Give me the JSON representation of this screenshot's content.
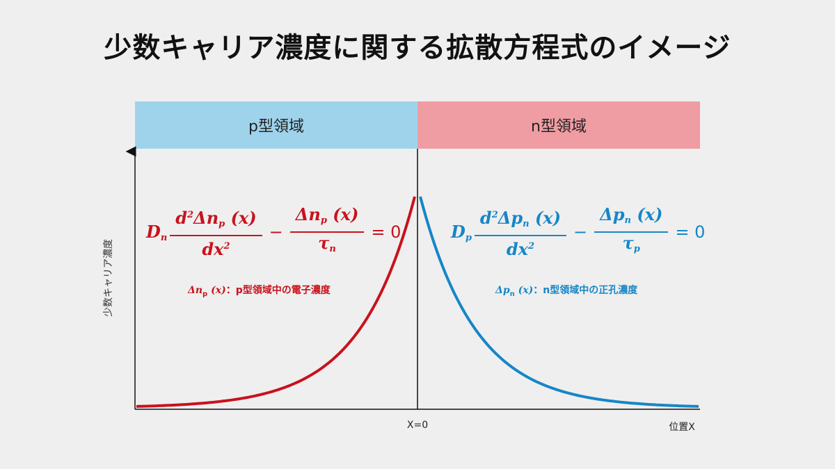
{
  "title": "少数キャリア濃度に関する拡散方程式のイメージ",
  "regions": {
    "p_label": "p型領域",
    "n_label": "n型領域"
  },
  "axes": {
    "ylabel": "少数キャリア濃度",
    "x_zero_label": "X=0",
    "xlabel": "位置X"
  },
  "equations": {
    "electron": {
      "D": "D",
      "D_sub": "n",
      "num1": "d",
      "num1_sup": "2",
      "num1_rest": "Δn",
      "num1_sub": "p",
      "num1_arg": "(x)",
      "den1": "dx",
      "den1_sup": "2",
      "num2": "Δn",
      "num2_sub": "p",
      "num2_arg": "(x)",
      "den2": "τ",
      "den2_sub": "n",
      "minus": "−",
      "equals": "= 0"
    },
    "hole": {
      "D": "D",
      "D_sub": "p",
      "num1": "d",
      "num1_sup": "2",
      "num1_rest": "Δp",
      "num1_sub": "n",
      "num1_arg": "(x)",
      "den1": "dx",
      "den1_sup": "2",
      "num2": "Δp",
      "num2_sub": "n",
      "num2_arg": "(x)",
      "den2": "τ",
      "den2_sub": "p",
      "minus": "−",
      "equals": "= 0"
    }
  },
  "notes": {
    "electron_sym": "Δn",
    "electron_sub": "p",
    "electron_arg": "(x)",
    "electron_text": "：p型領域中の電子濃度",
    "hole_sym": "Δp",
    "hole_sub": "n",
    "hole_arg": "(x)",
    "hole_text": "：n型領域中の正孔濃度"
  },
  "colors": {
    "electron": "#c8121d",
    "hole": "#1686c7",
    "p_region": "#9fd3ec",
    "n_region": "#f09ca3"
  }
}
